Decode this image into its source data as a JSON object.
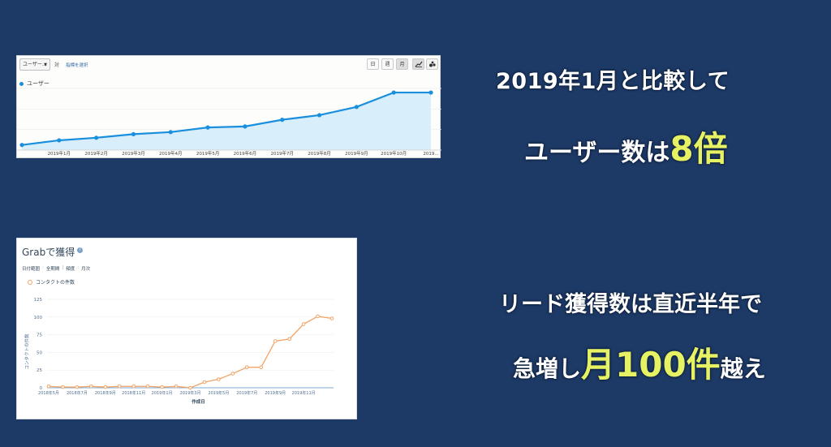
{
  "panel1": {
    "metric_select": "ユーザー",
    "vs_label": "対",
    "select_metric_link": "指標を選択",
    "periods": [
      "日",
      "週",
      "月"
    ],
    "active_period": "月",
    "legend": "ユーザー",
    "colors": {
      "line": "#1a8fde",
      "fill": "#d4ecfa"
    }
  },
  "panel2": {
    "title": "Grabで獲得",
    "filters": [
      "日付範囲",
      "全期間",
      "頻度",
      "月次"
    ],
    "legend": "コンタクトの件数",
    "colors": {
      "line": "#f2a365"
    }
  },
  "headlines": {
    "h1": "2019年1月と比較して",
    "h2_text": "ユーザー数は",
    "h2_highlight": "8倍",
    "h3": "リード獲得数は直近半年で",
    "h4_pre": "急増し",
    "h4_highlight": "月100件",
    "h4_post": "越え"
  },
  "chart_data": [
    {
      "type": "line",
      "series": [
        {
          "name": "ユーザー",
          "values": [
            1,
            1.9,
            2.4,
            3.1,
            3.5,
            4.4,
            4.6,
            5.9,
            6.8,
            8.4,
            11.2,
            11.2
          ]
        }
      ],
      "categories": [
        "",
        "2019年1月",
        "2019年2月",
        "2019年3月",
        "2019年4月",
        "2019年5月",
        "2019年6月",
        "2019年7月",
        "2019年8月",
        "2019年9月",
        "2019年10月",
        "2019..."
      ],
      "ylim": [
        0,
        12
      ],
      "grid": true
    },
    {
      "type": "line",
      "series": [
        {
          "name": "コンタクトの件数",
          "values": [
            2,
            1,
            1,
            2,
            1,
            2,
            2,
            2,
            1,
            2,
            0,
            8,
            12,
            20,
            29,
            29,
            66,
            69,
            90,
            101,
            98
          ]
        }
      ],
      "x_ticks": [
        "2018年5月",
        "2018年7月",
        "2018年9月",
        "2018年11月",
        "2019年1月",
        "2019年3月",
        "2019年5月",
        "2019年7月",
        "2019年9月",
        "2019年11月"
      ],
      "yticks": [
        0,
        25,
        50,
        75,
        100,
        125
      ],
      "ylabel": "コンタクトの件数",
      "xlabel": "作成日",
      "ylim": [
        0,
        125
      ],
      "grid": true
    }
  ]
}
